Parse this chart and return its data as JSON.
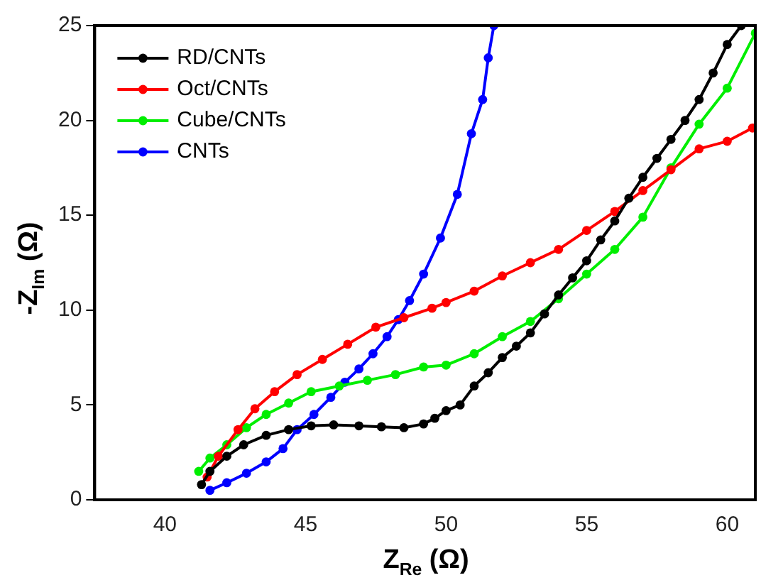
{
  "chart_data": {
    "type": "line",
    "xlabel": "Z$_{Re}$ (Ω)",
    "ylabel": "-Z$_{Im}$ (Ω)",
    "xlim": [
      37.5,
      61
    ],
    "xticks": [
      40,
      45,
      50,
      55,
      60
    ],
    "ylim": [
      0,
      25
    ],
    "yticks": [
      0,
      5,
      10,
      15,
      20,
      25
    ],
    "grid": false,
    "legend": "top left",
    "marker": "circle",
    "line_style": "solid",
    "series": [
      {
        "name": "RD/CNTs",
        "color": "#000000",
        "x": [
          41.3,
          41.6,
          42.2,
          42.8,
          43.6,
          44.4,
          45.2,
          46,
          46.9,
          47.7,
          48.5,
          49.2,
          49.6,
          50,
          50.5,
          51,
          51.5,
          52,
          52.5,
          53,
          53.5,
          54,
          54.5,
          55,
          55.5,
          56,
          56.5,
          57,
          57.5,
          58,
          58.5,
          59,
          59.5,
          60,
          60.5
        ],
        "values": [
          0.8,
          1.5,
          2.3,
          2.9,
          3.4,
          3.7,
          3.9,
          3.95,
          3.9,
          3.85,
          3.8,
          4.0,
          4.3,
          4.7,
          5.0,
          6.0,
          6.7,
          7.5,
          8.1,
          8.8,
          9.8,
          10.8,
          11.7,
          12.6,
          13.7,
          14.7,
          15.9,
          17.0,
          18.0,
          19.0,
          20.0,
          21.1,
          22.5,
          24.0,
          25
        ]
      },
      {
        "name": "Oct/CNTs",
        "color": "#ff0000",
        "x": [
          41.5,
          41.9,
          42.6,
          43.2,
          43.9,
          44.7,
          45.6,
          46.5,
          47.5,
          48.5,
          49.5,
          50,
          51,
          52,
          53,
          54,
          55,
          56,
          57,
          58,
          59,
          60,
          60.9
        ],
        "values": [
          1.2,
          2.3,
          3.7,
          4.8,
          5.7,
          6.6,
          7.4,
          8.2,
          9.1,
          9.6,
          10.1,
          10.4,
          11.0,
          11.8,
          12.5,
          13.2,
          14.2,
          15.2,
          16.3,
          17.4,
          18.5,
          18.9,
          19.6
        ]
      },
      {
        "name": "Cube/CNTs",
        "color": "#00ee00",
        "x": [
          41.2,
          41.6,
          42.2,
          42.9,
          43.6,
          44.4,
          45.2,
          46.2,
          47.2,
          48.2,
          49.2,
          50,
          51,
          52,
          53,
          54,
          55,
          56,
          57,
          58,
          59,
          60,
          61
        ],
        "values": [
          1.5,
          2.2,
          2.9,
          3.8,
          4.5,
          5.1,
          5.7,
          6.0,
          6.3,
          6.6,
          7.0,
          7.1,
          7.7,
          8.6,
          9.4,
          10.6,
          11.9,
          13.2,
          14.9,
          17.5,
          19.8,
          21.7,
          24.6
        ]
      },
      {
        "name": "CNTs",
        "color": "#0000ff",
        "x": [
          41.6,
          42.2,
          42.9,
          43.6,
          44.2,
          44.7,
          45.3,
          45.9,
          46.4,
          46.9,
          47.4,
          47.9,
          48.3,
          48.7,
          49.2,
          49.8,
          50.4,
          50.9,
          51.3,
          51.5,
          51.7
        ],
        "values": [
          0.5,
          0.9,
          1.4,
          2.0,
          2.7,
          3.7,
          4.5,
          5.4,
          6.2,
          6.9,
          7.7,
          8.6,
          9.5,
          10.5,
          11.9,
          13.8,
          16.1,
          19.3,
          21.1,
          23.3,
          25
        ]
      }
    ]
  }
}
